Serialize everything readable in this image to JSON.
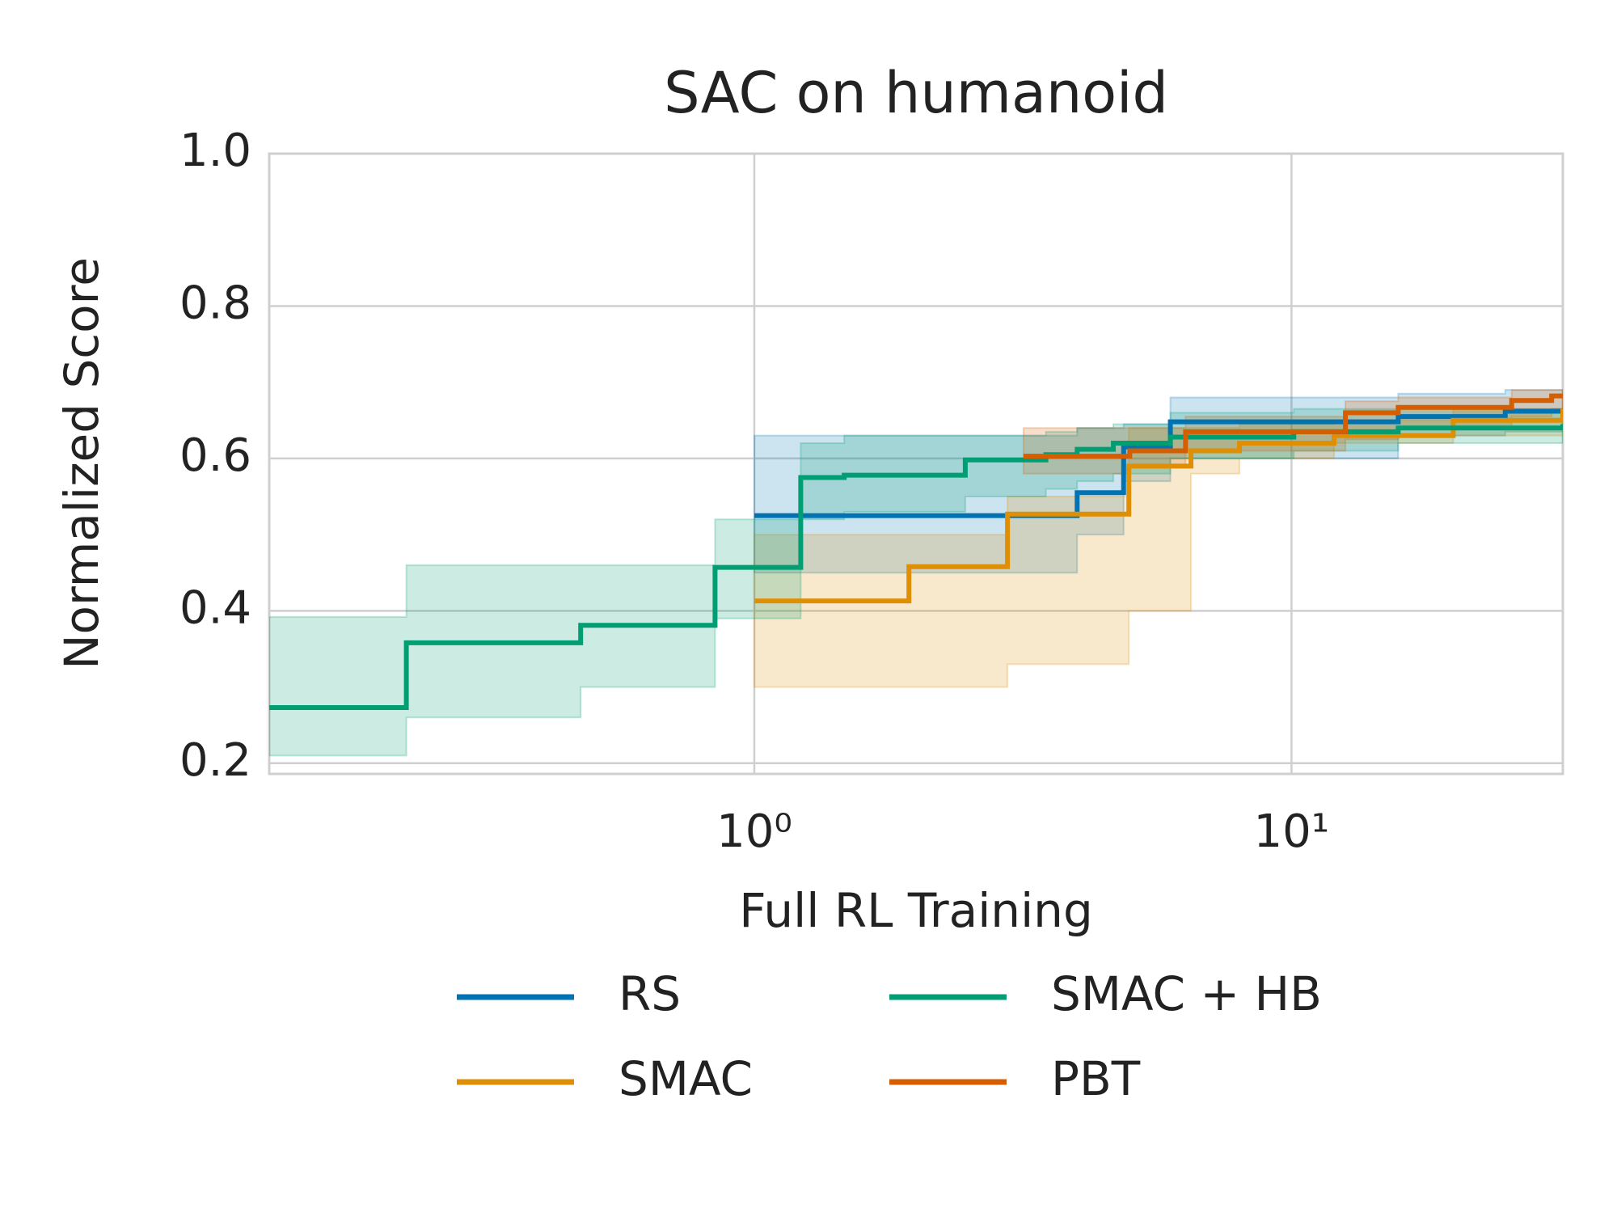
{
  "chart_data": {
    "type": "line",
    "title": "SAC on humanoid",
    "xlabel": "Full RL Training",
    "ylabel": "Normalized Score",
    "xscale": "log",
    "xlim": [
      0.125,
      32
    ],
    "ylim": [
      0.186,
      1.0
    ],
    "xticks": [
      {
        "value": 1,
        "label": "10⁰"
      },
      {
        "value": 10,
        "label": "10¹"
      }
    ],
    "yticks": [
      0.2,
      0.4,
      0.6,
      0.8,
      {
        "value": 1,
        "label": "1.0"
      }
    ],
    "grid": true,
    "legend": "below",
    "step": "post",
    "series": [
      {
        "name": "RS",
        "color": "#0173b2",
        "x": [
          1.0,
          3.99,
          4.87,
          5.95,
          15.8,
          25,
          32
        ],
        "values": [
          0.525,
          0.555,
          0.615,
          0.648,
          0.655,
          0.662,
          0.662
        ],
        "upper": [
          0.63,
          0.64,
          0.645,
          0.68,
          0.685,
          0.69,
          0.69
        ],
        "lower": [
          0.45,
          0.5,
          0.57,
          0.6,
          0.63,
          0.635,
          0.64
        ]
      },
      {
        "name": "SMAC",
        "color": "#de8f05",
        "x": [
          1.0,
          1.94,
          2.96,
          4.98,
          6.5,
          8,
          12,
          20,
          32
        ],
        "values": [
          0.413,
          0.458,
          0.527,
          0.59,
          0.61,
          0.62,
          0.63,
          0.65,
          0.665
        ],
        "upper": [
          0.5,
          0.5,
          0.55,
          0.64,
          0.64,
          0.645,
          0.65,
          0.665,
          0.68
        ],
        "lower": [
          0.3,
          0.3,
          0.33,
          0.4,
          0.58,
          0.6,
          0.62,
          0.63,
          0.64
        ]
      },
      {
        "name": "SMAC + HB",
        "color": "#029e73",
        "x": [
          0.125,
          0.225,
          0.475,
          0.845,
          1.22,
          1.47,
          2.47,
          3.49,
          3.99,
          4.66,
          5.95,
          10.1,
          15.8,
          32
        ],
        "values": [
          0.273,
          0.358,
          0.381,
          0.457,
          0.575,
          0.578,
          0.598,
          0.605,
          0.612,
          0.62,
          0.628,
          0.635,
          0.64,
          0.645
        ],
        "upper": [
          0.392,
          0.46,
          0.46,
          0.52,
          0.62,
          0.63,
          0.63,
          0.635,
          0.64,
          0.645,
          0.66,
          0.665,
          0.665,
          0.665
        ],
        "lower": [
          0.21,
          0.26,
          0.3,
          0.39,
          0.52,
          0.53,
          0.55,
          0.56,
          0.57,
          0.58,
          0.6,
          0.61,
          0.62,
          0.625
        ]
      },
      {
        "name": "PBT",
        "color": "#d55e00",
        "x": [
          3.17,
          5.0,
          6.35,
          12.6,
          15.8,
          25.7,
          30.5,
          32
        ],
        "values": [
          0.603,
          0.61,
          0.635,
          0.66,
          0.667,
          0.676,
          0.682,
          0.682
        ],
        "upper": [
          0.64,
          0.64,
          0.655,
          0.675,
          0.68,
          0.69,
          0.69,
          0.69
        ],
        "lower": [
          0.58,
          0.59,
          0.61,
          0.625,
          0.64,
          0.655,
          0.665,
          0.665
        ]
      }
    ]
  }
}
